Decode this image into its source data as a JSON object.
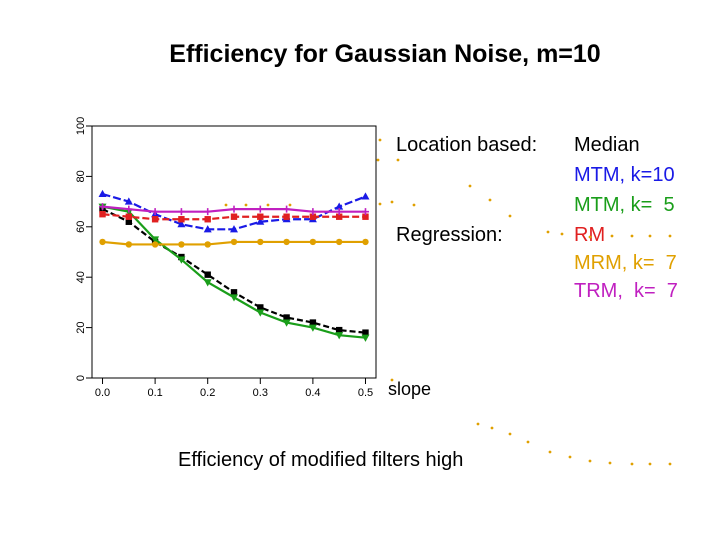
{
  "chart_data": {
    "type": "line",
    "title": "Efficiency for Gaussian Noise, m=10",
    "xlabel": "slope",
    "ylabel": "",
    "xlim": [
      -0.02,
      0.52
    ],
    "ylim": [
      0,
      100
    ],
    "x_ticks": [
      "0.0",
      "0.1",
      "0.2",
      "0.3",
      "0.4",
      "0.5"
    ],
    "y_ticks": [
      "0",
      "20",
      "40",
      "60",
      "80",
      "100"
    ],
    "grid": false,
    "legend_heading": "Location based:",
    "regression_heading": "Regression:",
    "series": [
      {
        "name": "Median",
        "color": "#000000",
        "marker": "square",
        "x": [
          0.0,
          0.05,
          0.1,
          0.15,
          0.2,
          0.25,
          0.3,
          0.35,
          0.4,
          0.45,
          0.5
        ],
        "y": [
          67,
          62,
          54,
          48,
          41,
          34,
          28,
          24,
          22,
          19,
          18
        ]
      },
      {
        "name": "MTM, k=10",
        "color": "#1a1ae6",
        "marker": "triangle-up",
        "x": [
          0.0,
          0.05,
          0.1,
          0.15,
          0.2,
          0.25,
          0.3,
          0.35,
          0.4,
          0.45,
          0.5
        ],
        "y": [
          73,
          70,
          65,
          61,
          59,
          59,
          62,
          63,
          63,
          68,
          72
        ]
      },
      {
        "name": "MTM, k=  5",
        "color": "#1a9e1a",
        "marker": "triangle-down",
        "x": [
          0.0,
          0.05,
          0.1,
          0.15,
          0.2,
          0.25,
          0.3,
          0.35,
          0.4,
          0.45,
          0.5
        ],
        "y": [
          68,
          66,
          55,
          47,
          38,
          32,
          26,
          22,
          20,
          17,
          16
        ]
      },
      {
        "name": "RM",
        "color": "#e02020",
        "marker": "square",
        "x": [
          0.0,
          0.05,
          0.1,
          0.15,
          0.2,
          0.25,
          0.3,
          0.35,
          0.4,
          0.45,
          0.5
        ],
        "y": [
          65,
          64,
          63,
          63,
          63,
          64,
          64,
          64,
          64,
          64,
          64
        ]
      },
      {
        "name": "MRM, k=  7",
        "color": "#e0a000",
        "marker": "circle",
        "x": [
          0.0,
          0.05,
          0.1,
          0.15,
          0.2,
          0.25,
          0.3,
          0.35,
          0.4,
          0.45,
          0.5
        ],
        "y": [
          54,
          53,
          53,
          53,
          53,
          54,
          54,
          54,
          54,
          54,
          54
        ]
      },
      {
        "name": "TRM,  k=  7",
        "color": "#c020c0",
        "marker": "plus",
        "x": [
          0.0,
          0.05,
          0.1,
          0.15,
          0.2,
          0.25,
          0.3,
          0.35,
          0.4,
          0.45,
          0.5
        ],
        "y": [
          68,
          67,
          66,
          66,
          66,
          67,
          67,
          67,
          66,
          66,
          66
        ]
      }
    ]
  },
  "footer_text": "Efficiency of modified filters high",
  "accent_dot_color": "#e0a000"
}
